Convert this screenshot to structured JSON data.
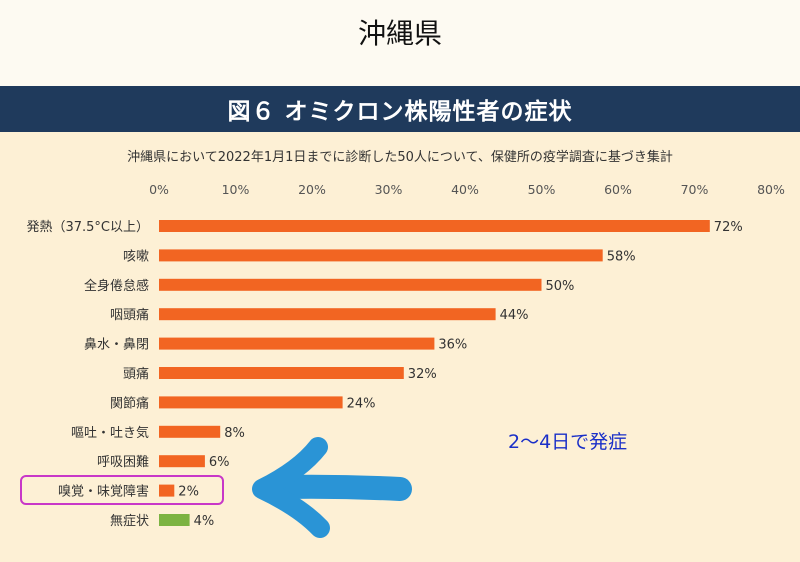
{
  "header": {
    "prefecture": "沖縄県",
    "figure_title": "図６ オミクロン株陽性者の症状",
    "subtitle": "沖縄県において2022年1月1日までに診断した50人について、保健所の疫学調査に基づき集計"
  },
  "annotation": {
    "note": "2～4日で発症"
  },
  "colors": {
    "bar": "#f26522",
    "bar_no_symptom": "#7cb342",
    "highlight_box": "#c837c8",
    "arrow": "#2a94d6",
    "title_bg": "#1f3a5c"
  },
  "chart_data": {
    "type": "bar",
    "orientation": "horizontal",
    "categories": [
      "発熱（37.5°C以上）",
      "咳嗽",
      "全身倦怠感",
      "咽頭痛",
      "鼻水・鼻閉",
      "頭痛",
      "関節痛",
      "嘔吐・吐き気",
      "呼吸困難",
      "嗅覚・味覚障害",
      "無症状"
    ],
    "values": [
      72,
      58,
      50,
      44,
      36,
      32,
      24,
      8,
      6,
      2,
      4
    ],
    "value_labels": [
      "72%",
      "58%",
      "50%",
      "44%",
      "36%",
      "32%",
      "24%",
      "8%",
      "6%",
      "2%",
      "4%"
    ],
    "xlim": [
      0,
      80
    ],
    "xticks": [
      "0%",
      "10%",
      "20%",
      "30%",
      "40%",
      "50%",
      "60%",
      "70%",
      "80%"
    ],
    "xtick_values": [
      0,
      10,
      20,
      30,
      40,
      50,
      60,
      70,
      80
    ],
    "axis_position": "top",
    "grid": false,
    "highlighted_category": "嗅覚・味覚障害"
  }
}
